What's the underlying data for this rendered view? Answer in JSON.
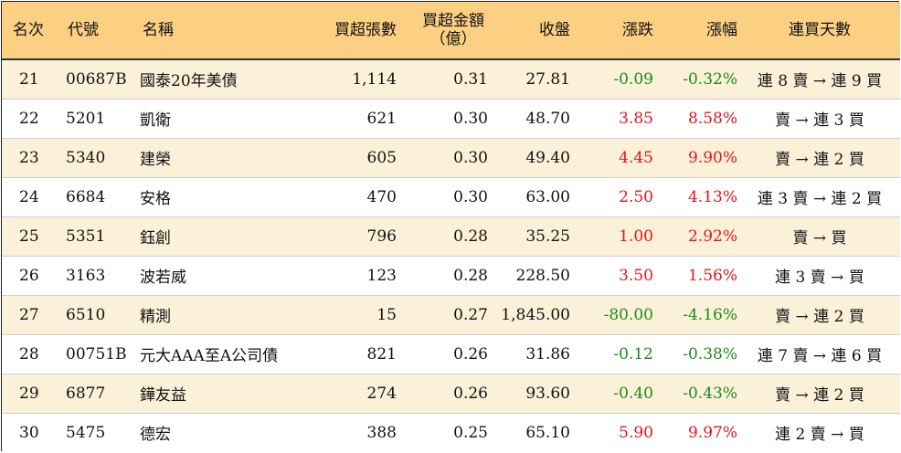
{
  "colors": {
    "header_bg": "#fbd082",
    "odd_row_bg": "#fbf1d8",
    "up": "#e8141e",
    "down": "#1a8c1a"
  },
  "headers": {
    "rank": "名次",
    "code": "代號",
    "name": "名稱",
    "net_lots": "買超張數",
    "net_amount_line1": "買超金額",
    "net_amount_line2": "（億）",
    "close": "收盤",
    "change": "漲跌",
    "change_pct": "漲幅",
    "streak": "連買天數"
  },
  "rows": [
    {
      "rank": "21",
      "code": "00687B",
      "name": "國泰20年美債",
      "net_lots": "1,114",
      "net_amount": "0.31",
      "close": "27.81",
      "change": "-0.09",
      "change_pct": "-0.32%",
      "direction": "down",
      "streak": "連 8 賣 → 連 9 買"
    },
    {
      "rank": "22",
      "code": "5201",
      "name": "凱衛",
      "net_lots": "621",
      "net_amount": "0.30",
      "close": "48.70",
      "change": "3.85",
      "change_pct": "8.58%",
      "direction": "up",
      "streak": "賣 → 連 3 買"
    },
    {
      "rank": "23",
      "code": "5340",
      "name": "建榮",
      "net_lots": "605",
      "net_amount": "0.30",
      "close": "49.40",
      "change": "4.45",
      "change_pct": "9.90%",
      "direction": "up",
      "streak": "賣 → 連 2 買"
    },
    {
      "rank": "24",
      "code": "6684",
      "name": "安格",
      "net_lots": "470",
      "net_amount": "0.30",
      "close": "63.00",
      "change": "2.50",
      "change_pct": "4.13%",
      "direction": "up",
      "streak": "連 3 賣 → 連 2 買"
    },
    {
      "rank": "25",
      "code": "5351",
      "name": "鈺創",
      "net_lots": "796",
      "net_amount": "0.28",
      "close": "35.25",
      "change": "1.00",
      "change_pct": "2.92%",
      "direction": "up",
      "streak": "賣 → 買"
    },
    {
      "rank": "26",
      "code": "3163",
      "name": "波若威",
      "net_lots": "123",
      "net_amount": "0.28",
      "close": "228.50",
      "change": "3.50",
      "change_pct": "1.56%",
      "direction": "up",
      "streak": "連 3 賣 → 買"
    },
    {
      "rank": "27",
      "code": "6510",
      "name": "精測",
      "net_lots": "15",
      "net_amount": "0.27",
      "close": "1,845.00",
      "change": "-80.00",
      "change_pct": "-4.16%",
      "direction": "down",
      "streak": "賣 → 連 2 買"
    },
    {
      "rank": "28",
      "code": "00751B",
      "name": "元大AAA至A公司債",
      "net_lots": "821",
      "net_amount": "0.26",
      "close": "31.86",
      "change": "-0.12",
      "change_pct": "-0.38%",
      "direction": "down",
      "streak": "連 7 賣 → 連 6 買"
    },
    {
      "rank": "29",
      "code": "6877",
      "name": "鏵友益",
      "net_lots": "274",
      "net_amount": "0.26",
      "close": "93.60",
      "change": "-0.40",
      "change_pct": "-0.43%",
      "direction": "down",
      "streak": "賣 → 連 2 買"
    },
    {
      "rank": "30",
      "code": "5475",
      "name": "德宏",
      "net_lots": "388",
      "net_amount": "0.25",
      "close": "65.10",
      "change": "5.90",
      "change_pct": "9.97%",
      "direction": "up",
      "streak": "連 2 賣 → 買"
    }
  ]
}
